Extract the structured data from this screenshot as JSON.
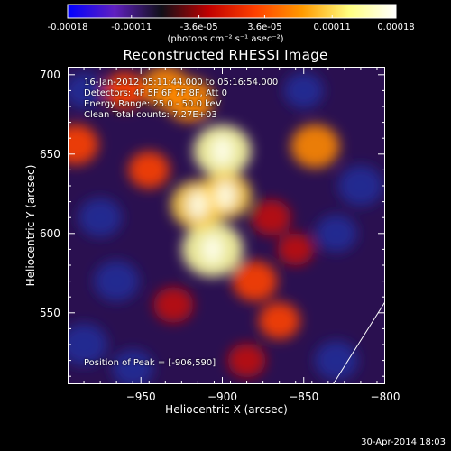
{
  "colorbar": {
    "ticks": [
      "-0.00018",
      "-0.00011",
      "-3.6e-05",
      "3.6e-05",
      "0.00011",
      "0.00018"
    ],
    "unit_label": "(photons cm⁻² s⁻¹ asec⁻²)",
    "range": [
      -0.00018,
      0.00018
    ],
    "colors": [
      "#0000ff",
      "#6020c0",
      "#101018",
      "#c00000",
      "#ff4000",
      "#ff9a00",
      "#ffff80",
      "#ffffff"
    ]
  },
  "chart_data": {
    "type": "heatmap",
    "title": "Reconstructed RHESSI Image",
    "xlabel": "Heliocentric X (arcsec)",
    "ylabel": "Heliocentric Y (arcsec)",
    "xlim": [
      -995,
      -800
    ],
    "ylim": [
      505,
      705
    ],
    "xticks": [
      -950,
      -900,
      -850,
      -800
    ],
    "yticks": [
      550,
      600,
      650,
      700
    ],
    "peak": [
      -906,
      590
    ],
    "sources": [
      {
        "x": -906,
        "y": 590,
        "intensity": 1.0
      },
      {
        "x": -900,
        "y": 652,
        "intensity": 0.9
      },
      {
        "x": -915,
        "y": 618,
        "intensity": 0.8
      },
      {
        "x": -898,
        "y": 624,
        "intensity": 0.75
      },
      {
        "x": -920,
        "y": 684,
        "intensity": 0.65
      },
      {
        "x": -935,
        "y": 692,
        "intensity": 0.6
      },
      {
        "x": -990,
        "y": 656,
        "intensity": 0.55
      },
      {
        "x": -843,
        "y": 655,
        "intensity": 0.65
      },
      {
        "x": -880,
        "y": 570,
        "intensity": 0.55
      },
      {
        "x": -865,
        "y": 545,
        "intensity": 0.45
      },
      {
        "x": -930,
        "y": 555,
        "intensity": 0.4
      },
      {
        "x": -945,
        "y": 640,
        "intensity": 0.45
      },
      {
        "x": -960,
        "y": 690,
        "intensity": 0.45
      },
      {
        "x": -870,
        "y": 610,
        "intensity": 0.4
      },
      {
        "x": -885,
        "y": 520,
        "intensity": 0.35
      },
      {
        "x": -855,
        "y": 590,
        "intensity": 0.3
      },
      {
        "x": -975,
        "y": 610,
        "intensity": -0.5
      },
      {
        "x": -965,
        "y": 570,
        "intensity": -0.55
      },
      {
        "x": -985,
        "y": 530,
        "intensity": -0.6
      },
      {
        "x": -830,
        "y": 520,
        "intensity": -0.5
      },
      {
        "x": -815,
        "y": 630,
        "intensity": -0.55
      },
      {
        "x": -830,
        "y": 600,
        "intensity": -0.45
      },
      {
        "x": -850,
        "y": 690,
        "intensity": -0.4
      },
      {
        "x": -955,
        "y": 515,
        "intensity": -0.45
      },
      {
        "x": -985,
        "y": 690,
        "intensity": -0.4
      }
    ],
    "annotations": [
      "16-Jan-2012 05:11:44.000 to 05:16:54.000",
      "Detectors: 4F 5F 6F 7F 8F, Att 0",
      "Energy Range: 25.0 - 50.0 keV",
      "Clean     Total counts: 7.27E+03"
    ],
    "peak_label": "Position of Peak = [-906,590]",
    "limb_line": [
      [
        -832,
        505
      ],
      [
        -800,
        557
      ]
    ]
  },
  "footer": {
    "timestamp": "30-Apr-2014 18:03"
  }
}
